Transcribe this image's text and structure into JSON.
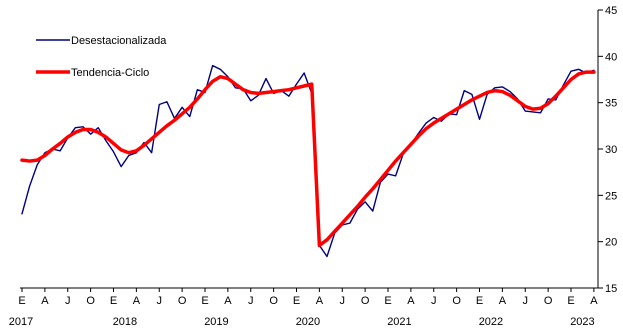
{
  "chart_data": {
    "type": "line",
    "title": "",
    "xlabel": "",
    "ylabel": "",
    "ylim": [
      15,
      45
    ],
    "y_ticks": [
      15,
      20,
      25,
      30,
      35,
      40,
      45
    ],
    "y_axis_side": "right",
    "grid": false,
    "legend_position": "top-left",
    "month_labels": [
      "E",
      "A",
      "J",
      "O",
      "E",
      "A",
      "J",
      "O",
      "E",
      "A",
      "J",
      "O",
      "E",
      "A",
      "J",
      "O",
      "E",
      "A",
      "J",
      "O",
      "E",
      "A",
      "J",
      "O",
      "E",
      "A"
    ],
    "year_labels": [
      "2017",
      "2018",
      "2019",
      "2020",
      "2021",
      "2022",
      "2023"
    ],
    "x": [
      "2017-01",
      "2017-02",
      "2017-03",
      "2017-04",
      "2017-05",
      "2017-06",
      "2017-07",
      "2017-08",
      "2017-09",
      "2017-10",
      "2017-11",
      "2017-12",
      "2018-01",
      "2018-02",
      "2018-03",
      "2018-04",
      "2018-05",
      "2018-06",
      "2018-07",
      "2018-08",
      "2018-09",
      "2018-10",
      "2018-11",
      "2018-12",
      "2019-01",
      "2019-02",
      "2019-03",
      "2019-04",
      "2019-05",
      "2019-06",
      "2019-07",
      "2019-08",
      "2019-09",
      "2019-10",
      "2019-11",
      "2019-12",
      "2020-01",
      "2020-02",
      "2020-03",
      "2020-04",
      "2020-05",
      "2020-06",
      "2020-07",
      "2020-08",
      "2020-09",
      "2020-10",
      "2020-11",
      "2020-12",
      "2021-01",
      "2021-02",
      "2021-03",
      "2021-04",
      "2021-05",
      "2021-06",
      "2021-07",
      "2021-08",
      "2021-09",
      "2021-10",
      "2021-11",
      "2021-12",
      "2022-01",
      "2022-02",
      "2022-03",
      "2022-04",
      "2022-05",
      "2022-06",
      "2022-07",
      "2022-08",
      "2022-09",
      "2022-10",
      "2022-11",
      "2022-12",
      "2023-01",
      "2023-02",
      "2023-03",
      "2023-04"
    ],
    "series": [
      {
        "name": "Desestacionalizada",
        "color": "#000080",
        "values": [
          23.0,
          26.0,
          28.3,
          29.6,
          30.0,
          29.8,
          31.2,
          32.3,
          32.4,
          31.6,
          32.3,
          30.9,
          29.7,
          28.1,
          29.3,
          29.6,
          30.7,
          29.6,
          34.8,
          35.1,
          33.3,
          34.5,
          33.5,
          36.4,
          36.1,
          39.0,
          38.6,
          37.8,
          36.6,
          36.5,
          35.2,
          35.8,
          37.6,
          36.0,
          36.3,
          35.7,
          37.0,
          38.2,
          36.0,
          19.6,
          18.4,
          20.9,
          21.8,
          22.0,
          23.5,
          24.3,
          23.3,
          26.4,
          27.3,
          27.1,
          29.5,
          30.5,
          31.7,
          32.8,
          33.4,
          33.0,
          33.8,
          33.7,
          36.3,
          35.9,
          33.2,
          35.9,
          36.6,
          36.7,
          36.2,
          35.4,
          34.1,
          34.0,
          33.9,
          35.4,
          35.3,
          36.9,
          38.4,
          38.6,
          38.2,
          38.5
        ]
      },
      {
        "name": "Tendencia-Ciclo",
        "color": "#ff0000",
        "values": [
          28.8,
          28.7,
          28.8,
          29.3,
          30.0,
          30.6,
          31.3,
          31.8,
          32.1,
          32.1,
          31.8,
          31.3,
          30.6,
          29.9,
          29.6,
          29.8,
          30.4,
          31.1,
          31.8,
          32.5,
          33.1,
          33.8,
          34.5,
          35.4,
          36.4,
          37.3,
          37.8,
          37.6,
          37.0,
          36.4,
          36.1,
          36.0,
          36.1,
          36.2,
          36.3,
          36.4,
          36.6,
          36.8,
          37.0,
          19.6,
          20.2,
          21.1,
          22.0,
          22.9,
          23.8,
          24.8,
          25.7,
          26.7,
          27.7,
          28.7,
          29.6,
          30.5,
          31.4,
          32.2,
          32.8,
          33.3,
          33.8,
          34.3,
          34.8,
          35.3,
          35.7,
          36.1,
          36.3,
          36.2,
          35.8,
          35.2,
          34.6,
          34.3,
          34.4,
          34.9,
          35.7,
          36.6,
          37.5,
          38.1,
          38.3,
          38.3
        ]
      }
    ]
  }
}
